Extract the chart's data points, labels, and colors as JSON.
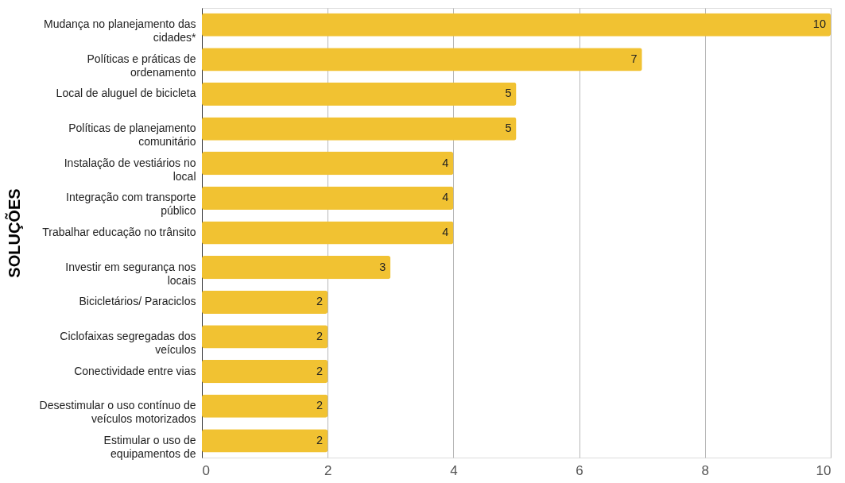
{
  "chart_data": {
    "type": "bar",
    "orientation": "horizontal",
    "ylabel": "SOLUÇÕES",
    "categories": [
      "Mudança no planejamento das cidades*",
      "Políticas e práticas de ordenamento",
      "Local de aluguel de bicicleta",
      "Políticas de planejamento comunitário",
      "Instalação de vestiários no local",
      "Integração com transporte público",
      "Trabalhar educação no trânsito",
      "Investir em segurança nos locais",
      "Bicicletários/ Paraciclos",
      "Ciclofaixas segregadas dos veículos",
      "Conectividade entre vias",
      "Desestimular o uso contínuo de veículos motorizados",
      "Estimular o uso de equipamentos de"
    ],
    "values": [
      10,
      7,
      5,
      5,
      4,
      4,
      4,
      3,
      2,
      2,
      2,
      2,
      2
    ],
    "color": "#f1c232",
    "xlim": [
      0,
      10
    ],
    "xticks": [
      0,
      2,
      4,
      6,
      8,
      10
    ],
    "grid": "x",
    "data_labels": true
  }
}
